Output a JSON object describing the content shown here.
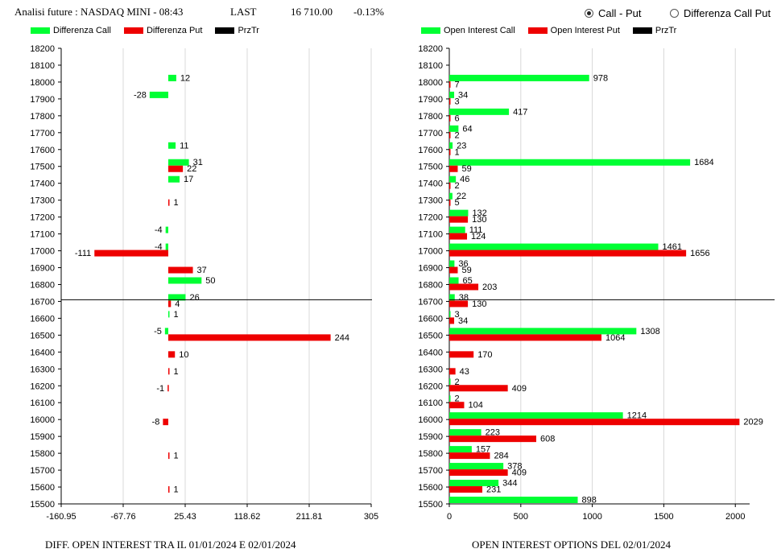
{
  "header": {
    "title": "Analisi future : NASDAQ MINI - 08:43",
    "last_label": "LAST",
    "last_value": "16 710.00",
    "change": "-0.13%"
  },
  "radio_options": [
    {
      "label": "Call - Put",
      "selected": true
    },
    {
      "label": "Differenza Call Put",
      "selected": false
    }
  ],
  "colors": {
    "call": "#00ff33",
    "put": "#ee0000",
    "przTr": "#000000"
  },
  "left_legend": [
    "Differenza Call",
    "Differenza Put",
    "PrzTr"
  ],
  "right_legend": [
    "Open Interest Call",
    "Open Interest Put",
    "PrzTr"
  ],
  "left_footer": "DIFF. OPEN INTEREST TRA IL 01/01/2024 E 02/01/2024",
  "right_footer": "OPEN INTEREST OPTIONS DEL 02/01/2024",
  "chart_data": [
    {
      "type": "bar",
      "orientation": "horizontal",
      "xlabel": "DIFF. OPEN INTEREST TRA IL 01/01/2024 E 02/01/2024",
      "xlim": [
        -160.95,
        305
      ],
      "xticks": [
        "-160.95",
        "-67.76",
        "25.43",
        "118.62",
        "211.81",
        "305"
      ],
      "xtick_values": [
        -160.95,
        -67.76,
        25.43,
        118.62,
        211.81,
        305
      ],
      "categories": [
        "18200",
        "18100",
        "18000",
        "17900",
        "17800",
        "17700",
        "17600",
        "17500",
        "17400",
        "17300",
        "17200",
        "17100",
        "17000",
        "16900",
        "16800",
        "16700",
        "16600",
        "16500",
        "16400",
        "16300",
        "16200",
        "16100",
        "16000",
        "15900",
        "15800",
        "15700",
        "15600",
        "15500"
      ],
      "series": [
        {
          "name": "Differenza Call",
          "values": [
            null,
            null,
            12,
            -28,
            null,
            null,
            11,
            31,
            17,
            null,
            null,
            -4,
            -4,
            null,
            50,
            26,
            1,
            -5,
            null,
            null,
            null,
            null,
            null,
            null,
            null,
            null,
            null,
            null
          ]
        },
        {
          "name": "Differenza Put",
          "values": [
            null,
            null,
            null,
            null,
            null,
            null,
            null,
            22,
            null,
            1,
            null,
            null,
            -111,
            37,
            null,
            4,
            null,
            244,
            10,
            1,
            -1,
            null,
            -8,
            null,
            1,
            null,
            1,
            null
          ]
        }
      ],
      "price_line": {
        "name": "PrzTr",
        "value": 16710.0
      },
      "grid": true
    },
    {
      "type": "bar",
      "orientation": "horizontal",
      "xlabel": "OPEN INTEREST OPTIONS DEL 02/01/2024",
      "xlim": [
        0,
        2100
      ],
      "xticks": [
        "0",
        "500",
        "1000",
        "1500",
        "2000"
      ],
      "xtick_values": [
        0,
        500,
        1000,
        1500,
        2000
      ],
      "categories": [
        "18200",
        "18100",
        "18000",
        "17900",
        "17800",
        "17700",
        "17600",
        "17500",
        "17400",
        "17300",
        "17200",
        "17100",
        "17000",
        "16900",
        "16800",
        "16700",
        "16600",
        "16500",
        "16400",
        "16300",
        "16200",
        "16100",
        "16000",
        "15900",
        "15800",
        "15700",
        "15600",
        "15500"
      ],
      "series": [
        {
          "name": "Open Interest Call",
          "values": [
            null,
            null,
            978,
            34,
            417,
            64,
            23,
            1684,
            46,
            22,
            132,
            111,
            1461,
            36,
            65,
            38,
            3,
            1308,
            null,
            null,
            2,
            2,
            1214,
            223,
            157,
            378,
            344,
            898
          ]
        },
        {
          "name": "Open Interest Put",
          "values": [
            null,
            null,
            7,
            3,
            6,
            2,
            1,
            59,
            2,
            5,
            130,
            124,
            1656,
            59,
            203,
            130,
            34,
            1064,
            170,
            43,
            409,
            104,
            2029,
            608,
            284,
            409,
            231,
            null
          ]
        }
      ],
      "price_line": {
        "name": "PrzTr",
        "value": 16710.0
      },
      "grid": true
    }
  ]
}
